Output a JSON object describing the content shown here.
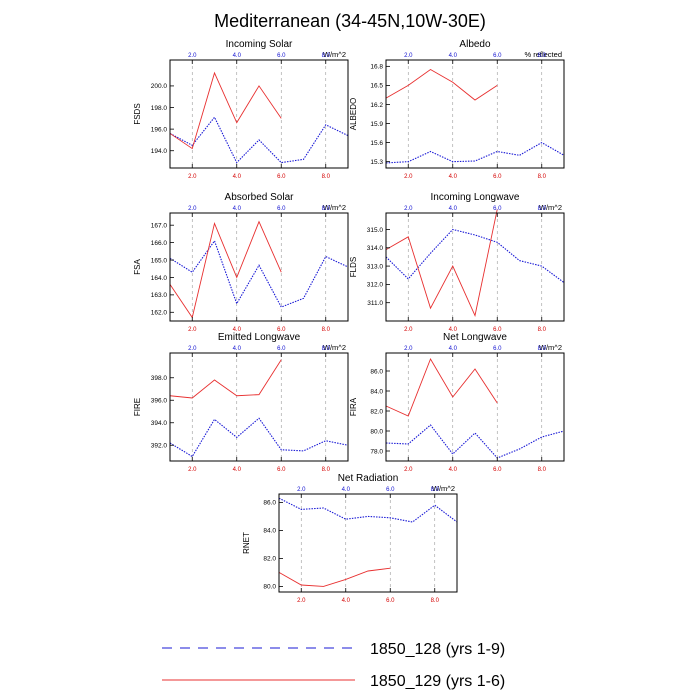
{
  "title": "Mediterranean (34-45N,10W-30E)",
  "colors": {
    "series_a": "#1a1ad6",
    "series_b": "#e83030",
    "grid": "#999999"
  },
  "legend": [
    {
      "label": "1850_128 (yrs 1-9)",
      "style": "dashed"
    },
    {
      "label": "1850_129 (yrs 1-6)",
      "style": "solid"
    }
  ],
  "chart_data": [
    {
      "type": "line",
      "title": "Incoming Solar",
      "ylabel": "FSDS",
      "units": "W/m^2",
      "xlim": [
        1,
        9
      ],
      "ylim": [
        192.4,
        202.4
      ],
      "yticks": [
        194.0,
        196.0,
        198.0,
        200.0
      ],
      "xticks": [
        2.0,
        4.0,
        6.0,
        8.0
      ],
      "xtick_labels_top": [
        "2.0",
        "4.0",
        "6.0",
        "8.0"
      ],
      "xtick_labels_bottom": [
        "2.0",
        "4.0",
        "6.0",
        "8.0"
      ],
      "series": [
        {
          "x": [
            1,
            2,
            3,
            4,
            5,
            6,
            7,
            8,
            9
          ],
          "values": [
            195.6,
            194.5,
            197.1,
            192.9,
            195.0,
            192.9,
            193.2,
            196.4,
            195.4
          ]
        },
        {
          "x": [
            1,
            2,
            3,
            4,
            5,
            6
          ],
          "values": [
            195.6,
            194.2,
            201.2,
            196.6,
            200.0,
            197.0
          ]
        }
      ]
    },
    {
      "type": "line",
      "title": "Albedo",
      "ylabel": "ALBEDO",
      "units": "% reflected",
      "xlim": [
        1,
        9
      ],
      "ylim": [
        15.2,
        16.9
      ],
      "yticks": [
        15.3,
        15.6,
        15.9,
        16.2,
        16.5,
        16.8
      ],
      "xticks": [
        2.0,
        4.0,
        6.0,
        8.0
      ],
      "xtick_labels_top": [
        "2.0",
        "4.0",
        "6.0",
        "8.0"
      ],
      "xtick_labels_bottom": [
        "2.0",
        "4.0",
        "6.0",
        "8.0"
      ],
      "series": [
        {
          "x": [
            1,
            2,
            3,
            4,
            5,
            6,
            7,
            8,
            9
          ],
          "values": [
            15.28,
            15.3,
            15.46,
            15.3,
            15.31,
            15.46,
            15.4,
            15.6,
            15.4
          ]
        },
        {
          "x": [
            1,
            2,
            3,
            4,
            5,
            6
          ],
          "values": [
            16.3,
            16.5,
            16.75,
            16.55,
            16.27,
            16.5
          ]
        }
      ]
    },
    {
      "type": "line",
      "title": "Absorbed Solar",
      "ylabel": "FSA",
      "units": "W/m^2",
      "xlim": [
        1,
        9
      ],
      "ylim": [
        161.5,
        167.7
      ],
      "yticks": [
        162.0,
        163.0,
        164.0,
        165.0,
        166.0,
        167.0
      ],
      "xticks": [
        2.0,
        4.0,
        6.0,
        8.0
      ],
      "xtick_labels_top": [
        "2.0",
        "4.0",
        "6.0",
        "8.0"
      ],
      "xtick_labels_bottom": [
        "2.0",
        "4.0",
        "6.0",
        "8.0"
      ],
      "series": [
        {
          "x": [
            1,
            2,
            3,
            4,
            5,
            6,
            7,
            8,
            9
          ],
          "values": [
            165.1,
            164.3,
            166.1,
            162.5,
            164.7,
            162.3,
            162.8,
            165.2,
            164.6
          ]
        },
        {
          "x": [
            1,
            2,
            3,
            4,
            5,
            6
          ],
          "values": [
            163.6,
            161.7,
            167.1,
            164.0,
            167.2,
            164.3
          ]
        }
      ]
    },
    {
      "type": "line",
      "title": "Incoming Longwave",
      "ylabel": "FLDS",
      "units": "W/m^2",
      "xlim": [
        1,
        9
      ],
      "ylim": [
        310.0,
        315.9
      ],
      "yticks": [
        311.0,
        312.0,
        313.0,
        314.0,
        315.0
      ],
      "xticks": [
        2.0,
        4.0,
        6.0,
        8.0
      ],
      "xtick_labels_top": [
        "2.0",
        "4.0",
        "6.0",
        "8.0"
      ],
      "xtick_labels_bottom": [
        "2.0",
        "4.0",
        "6.0",
        "8.0"
      ],
      "series": [
        {
          "x": [
            1,
            2,
            3,
            4,
            5,
            6,
            7,
            8,
            9
          ],
          "values": [
            313.5,
            312.3,
            313.7,
            315.0,
            314.7,
            314.3,
            313.3,
            313.0,
            312.1
          ]
        },
        {
          "x": [
            1,
            2,
            3,
            4,
            5,
            6
          ],
          "values": [
            313.9,
            314.6,
            310.7,
            313.0,
            310.3,
            316.1
          ]
        }
      ]
    },
    {
      "type": "line",
      "title": "Emitted Longwave",
      "ylabel": "FIRE",
      "units": "W/m^2",
      "xlim": [
        1,
        9
      ],
      "ylim": [
        390.6,
        400.2
      ],
      "yticks": [
        392.0,
        394.0,
        396.0,
        398.0
      ],
      "xticks": [
        2.0,
        4.0,
        6.0,
        8.0
      ],
      "xtick_labels_top": [
        "2.0",
        "4.0",
        "6.0",
        "8.0"
      ],
      "xtick_labels_bottom": [
        "2.0",
        "4.0",
        "6.0",
        "8.0"
      ],
      "series": [
        {
          "x": [
            1,
            2,
            3,
            4,
            5,
            6,
            7,
            8,
            9
          ],
          "values": [
            392.2,
            391.0,
            394.3,
            392.7,
            394.4,
            391.6,
            391.5,
            392.4,
            392.0
          ]
        },
        {
          "x": [
            1,
            2,
            3,
            4,
            5,
            6
          ],
          "values": [
            396.4,
            396.2,
            397.8,
            396.4,
            396.5,
            399.6
          ]
        }
      ]
    },
    {
      "type": "line",
      "title": "Net Longwave",
      "ylabel": "FIRA",
      "units": "W/m^2",
      "xlim": [
        1,
        9
      ],
      "ylim": [
        77.0,
        87.8
      ],
      "yticks": [
        78.0,
        80.0,
        82.0,
        84.0,
        86.0
      ],
      "xticks": [
        2.0,
        4.0,
        6.0,
        8.0
      ],
      "xtick_labels_top": [
        "2.0",
        "4.0",
        "6.0",
        "8.0"
      ],
      "xtick_labels_bottom": [
        "2.0",
        "4.0",
        "6.0",
        "8.0"
      ],
      "series": [
        {
          "x": [
            1,
            2,
            3,
            4,
            5,
            6,
            7,
            8,
            9
          ],
          "values": [
            78.8,
            78.7,
            80.6,
            77.7,
            79.8,
            77.3,
            78.2,
            79.4,
            80.0
          ]
        },
        {
          "x": [
            1,
            2,
            3,
            4,
            5,
            6
          ],
          "values": [
            82.5,
            81.5,
            87.2,
            83.4,
            86.2,
            82.8
          ]
        }
      ]
    },
    {
      "type": "line",
      "title": "Net Radiation",
      "ylabel": "RNET",
      "units": "W/m^2",
      "xlim": [
        1,
        9
      ],
      "ylim": [
        79.6,
        86.6
      ],
      "yticks": [
        80.0,
        82.0,
        84.0,
        86.0
      ],
      "xticks": [
        2.0,
        4.0,
        6.0,
        8.0
      ],
      "xtick_labels_top": [
        "2.0",
        "4.0",
        "6.0",
        "8.0"
      ],
      "xtick_labels_bottom": [
        "2.0",
        "4.0",
        "6.0",
        "8.0"
      ],
      "series": [
        {
          "x": [
            1,
            2,
            3,
            4,
            5,
            6,
            7,
            8,
            9
          ],
          "values": [
            86.3,
            85.5,
            85.6,
            84.8,
            85.0,
            84.9,
            84.6,
            85.8,
            84.6
          ]
        },
        {
          "x": [
            1,
            2,
            3,
            4,
            5,
            6
          ],
          "values": [
            81.0,
            80.1,
            80.0,
            80.5,
            81.1,
            81.3
          ]
        }
      ]
    }
  ]
}
